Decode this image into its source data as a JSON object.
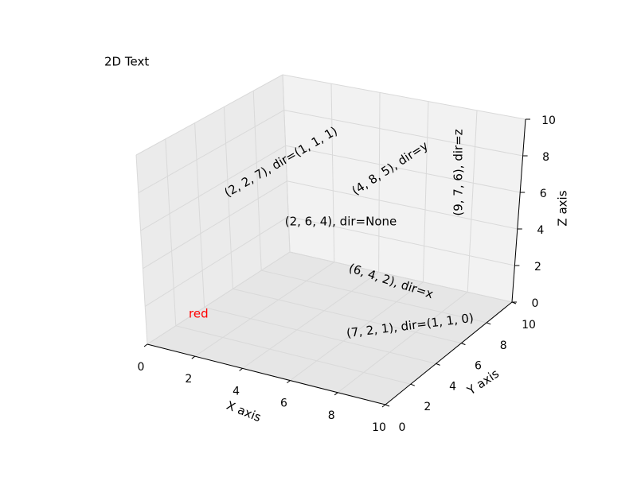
{
  "chart_data": {
    "type": "scatter",
    "projection": "3d",
    "title": "",
    "xlabel": "X axis",
    "ylabel": "Y axis",
    "zlabel": "Z axis",
    "xlim": [
      0,
      10
    ],
    "ylim": [
      0,
      10
    ],
    "zlim": [
      0,
      10
    ],
    "xticks": [
      "0",
      "2",
      "4",
      "6",
      "8",
      "10"
    ],
    "yticks": [
      "0",
      "2",
      "4",
      "6",
      "8",
      "10"
    ],
    "zticks": [
      "0",
      "2",
      "4",
      "6",
      "8",
      "10"
    ],
    "grid": true,
    "texts_3d": [
      {
        "x": 2,
        "y": 6,
        "z": 4,
        "label": "(2, 6, 4), dir=None",
        "dir": "None"
      },
      {
        "x": 6,
        "y": 4,
        "z": 2,
        "label": "(6, 4, 2), dir=x",
        "dir": "x"
      },
      {
        "x": 4,
        "y": 8,
        "z": 5,
        "label": "(4, 8, 5), dir=y",
        "dir": "y"
      },
      {
        "x": 9,
        "y": 7,
        "z": 6,
        "label": "(9, 7, 6), dir=z",
        "dir": "z"
      },
      {
        "x": 2,
        "y": 2,
        "z": 7,
        "label": "(2, 2, 7), dir=(1, 1, 1)",
        "dir": "(1, 1, 1)"
      },
      {
        "x": 7,
        "y": 2,
        "z": 1,
        "label": "(7, 2, 1), dir=(1, 1, 0)",
        "dir": "(1, 1, 0)"
      }
    ],
    "point": {
      "x": 1,
      "y": 1,
      "z": 1,
      "label": "red",
      "color": "#ff0000"
    },
    "figure_text": "2D Text"
  },
  "colors": {
    "pane_light": "#f2f2f2",
    "pane_mid": "#ebebeb",
    "pane_dark": "#e6e6e6",
    "grid": "#d9d9d9",
    "axis": "#000000",
    "highlight": "#ff0000"
  }
}
